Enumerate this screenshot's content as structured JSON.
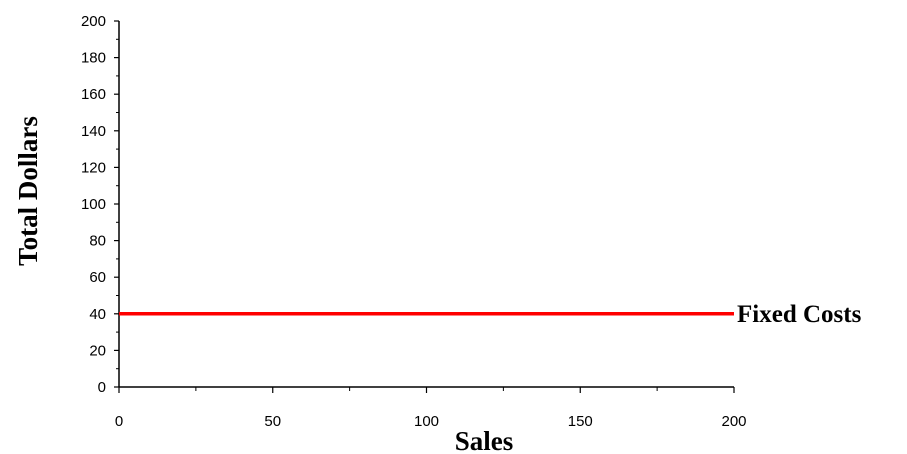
{
  "chart_data": {
    "type": "line",
    "title": "",
    "xlabel": "Sales",
    "ylabel": "Total Dollars",
    "xlim": [
      0,
      200
    ],
    "ylim": [
      0,
      200
    ],
    "x_ticks": [
      0,
      50,
      100,
      150,
      200
    ],
    "y_ticks": [
      0,
      20,
      40,
      60,
      80,
      100,
      120,
      140,
      160,
      180,
      200
    ],
    "grid": false,
    "legend": "none",
    "series": [
      {
        "name": "Fixed Costs",
        "x": [
          0,
          200
        ],
        "y": [
          40,
          40
        ],
        "color": "#ff0000"
      }
    ]
  }
}
